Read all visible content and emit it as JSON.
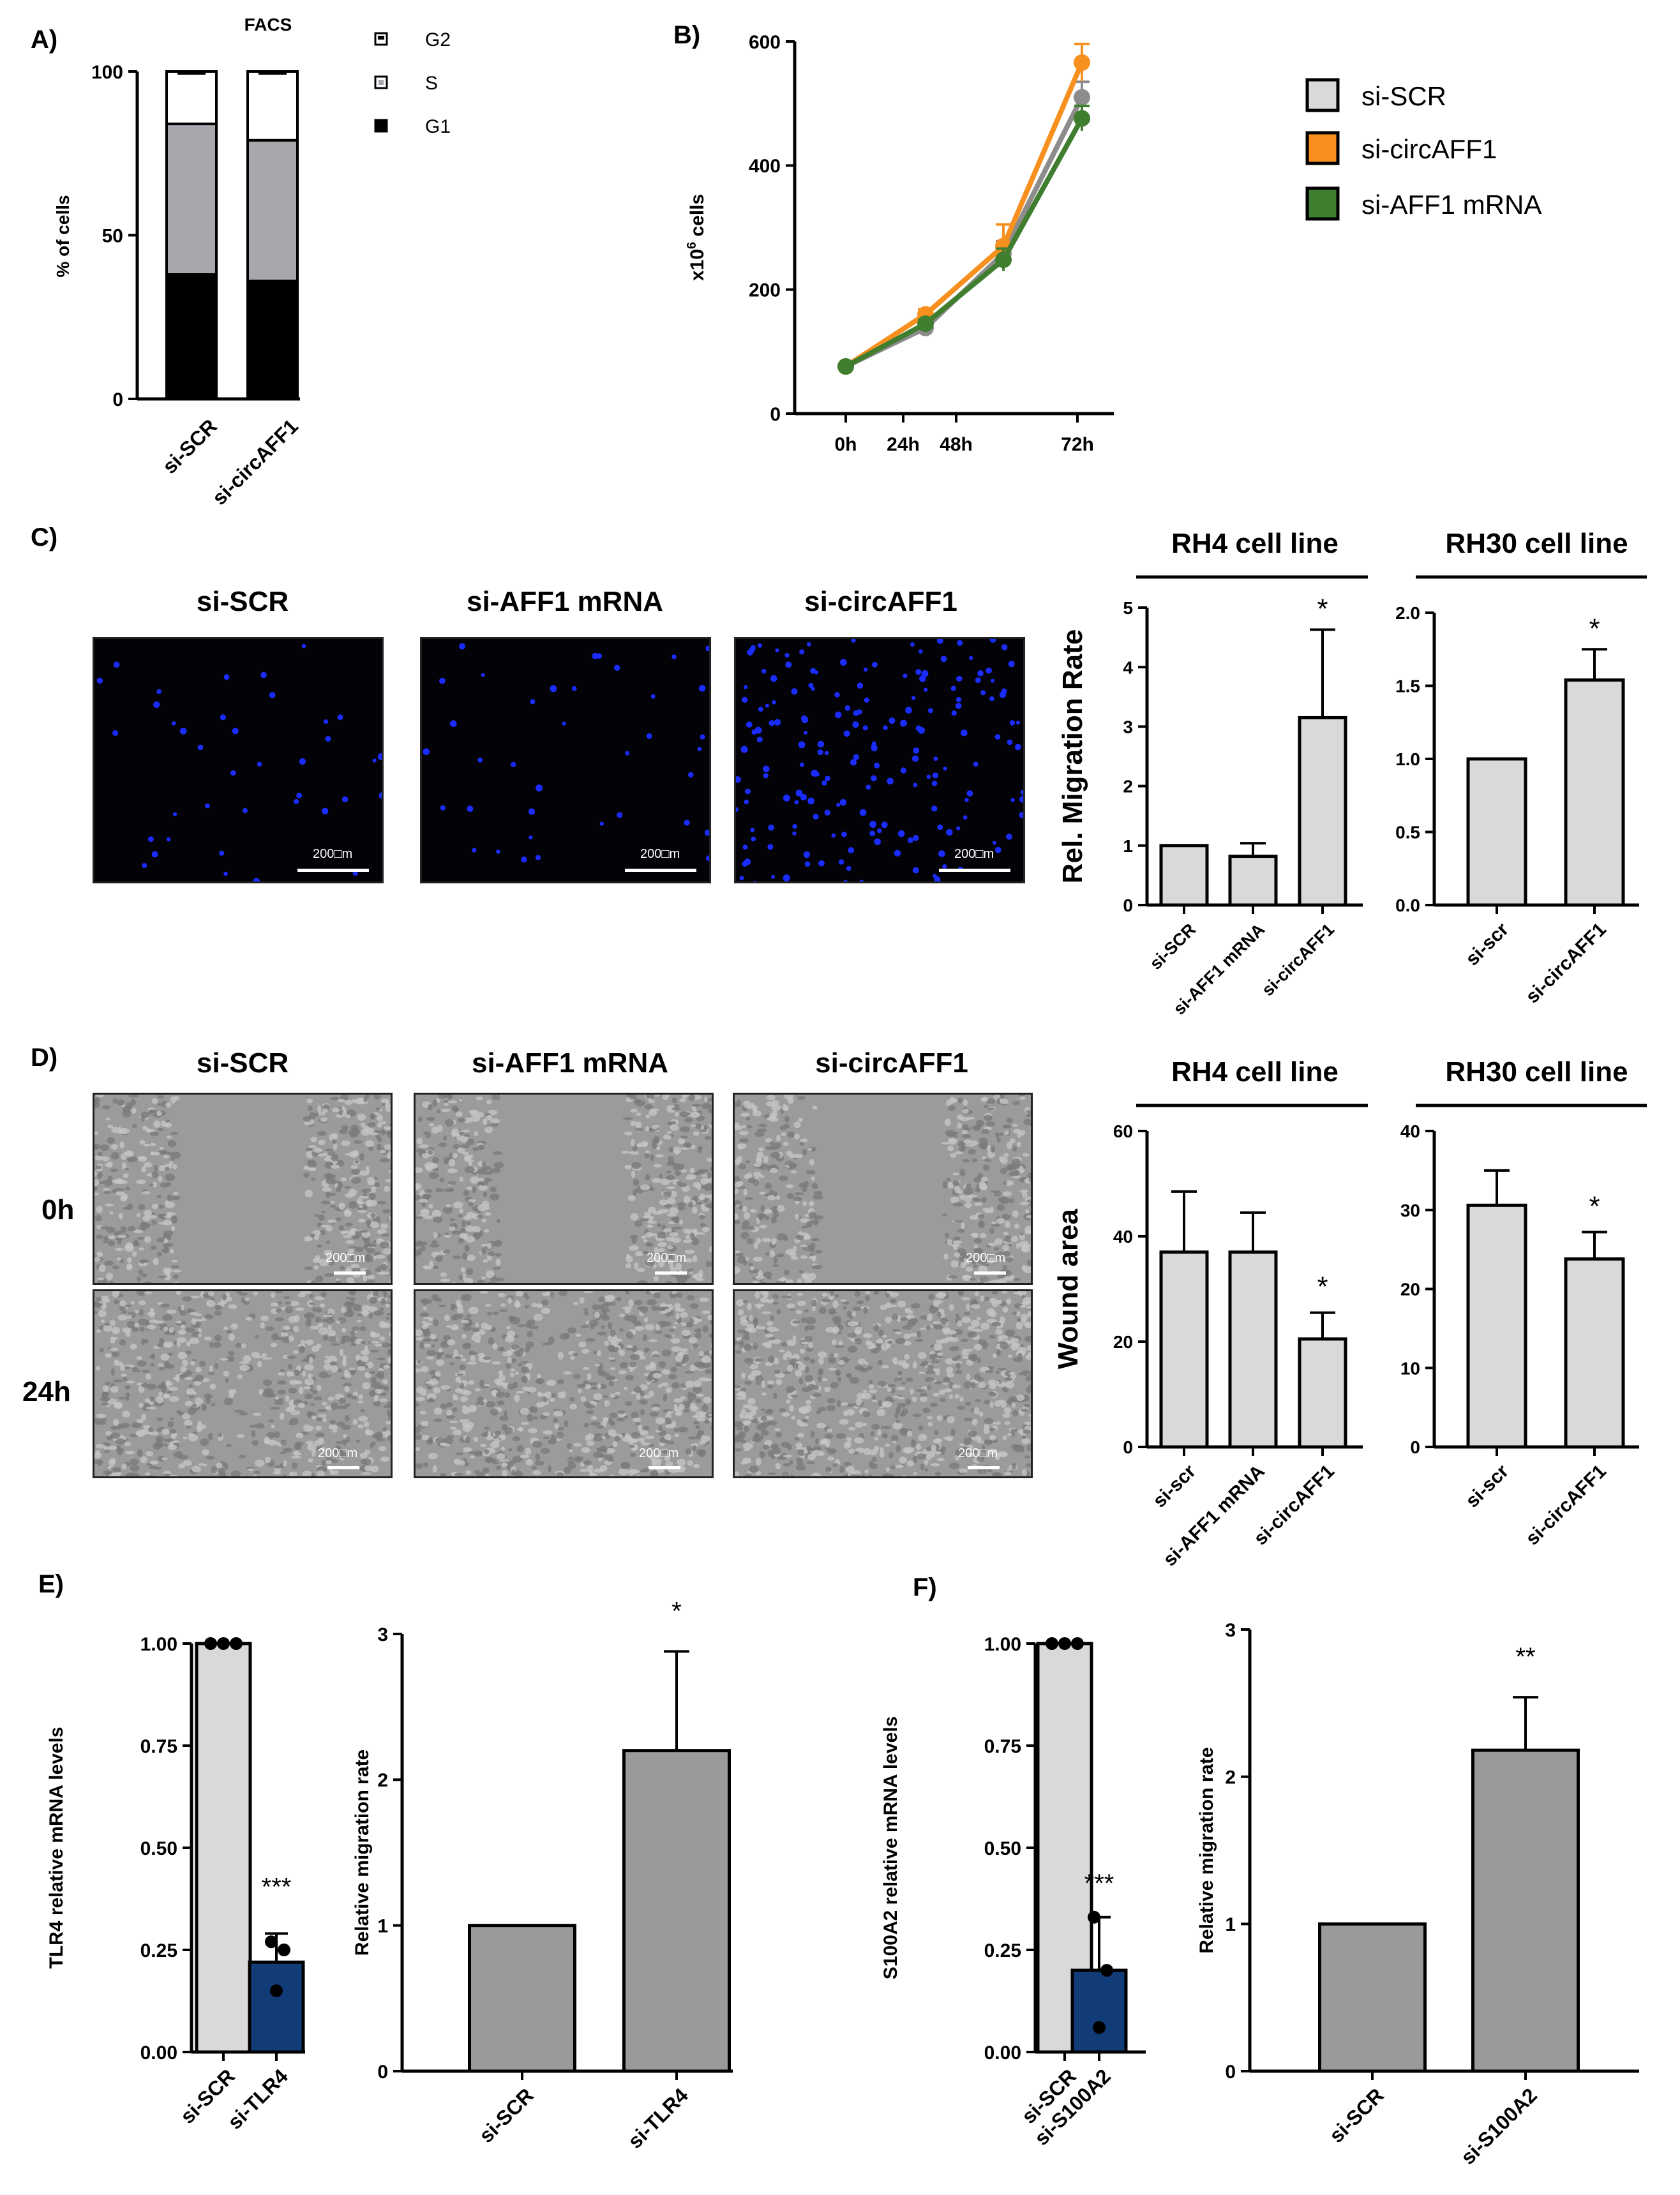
{
  "panels": {
    "A": "A)",
    "B": "B)",
    "C": "C)",
    "D": "D)",
    "E": "E)",
    "F": "F)"
  },
  "colors": {
    "black": "#000000",
    "grey_bar": "#cfcfcf",
    "dark_grey_bar": "#9a9a9a",
    "light_bar": "#d9d9d9",
    "navy": "#123c78",
    "orange": "#f7901e",
    "green": "#3f7d2f",
    "gray_line": "#8c8c8c",
    "fluor_dot": "#1a2cff"
  },
  "micrographs": {
    "c_headers": [
      "si-SCR",
      "si-AFF1 mRNA",
      "si-circAFF1"
    ],
    "d_headers": [
      "si-SCR",
      "si-AFF1 mRNA",
      "si-circAFF1"
    ],
    "d_rows": [
      "0h",
      "24h"
    ],
    "scale_label": "200□m"
  },
  "chart_data": [
    {
      "id": "A",
      "type": "bar",
      "title": "FACS",
      "stacked": true,
      "categories": [
        "si-SCR",
        "si-circAFF1"
      ],
      "series": [
        {
          "name": "G1",
          "values": [
            38,
            36
          ],
          "errors": [
            1.5,
            1.5
          ]
        },
        {
          "name": "S",
          "values": [
            46,
            43
          ],
          "errors": [
            2.5,
            1.0
          ]
        },
        {
          "name": "G2",
          "values": [
            16,
            21
          ],
          "errors": [
            0.8,
            1.0
          ]
        }
      ],
      "legend_order": [
        "G2",
        "S",
        "G1"
      ],
      "ylabel": "% of cells",
      "ylim": [
        0,
        100
      ],
      "yticks": [
        0,
        50,
        100
      ]
    },
    {
      "id": "B",
      "type": "line",
      "x": [
        "0h",
        "24h",
        "48h",
        "72h"
      ],
      "series": [
        {
          "name": "si-SCR",
          "values": [
            76,
            138,
            258,
            510
          ],
          "errors": [
            2,
            5,
            20,
            25
          ]
        },
        {
          "name": "si-circAFF1",
          "values": [
            76,
            160,
            270,
            566
          ],
          "errors": [
            2,
            8,
            35,
            30
          ]
        },
        {
          "name": "si-AFF1 mRNA",
          "values": [
            76,
            145,
            248,
            476
          ],
          "errors": [
            2,
            6,
            18,
            20
          ]
        }
      ],
      "ylabel_parts": [
        "x10",
        "6",
        " cells"
      ],
      "ylim": [
        0,
        600
      ],
      "yticks": [
        0,
        200,
        400,
        600
      ]
    },
    {
      "id": "C_RH4",
      "type": "bar",
      "title": "RH4 cell line",
      "categories": [
        "si-SCR",
        "si-AFF1 mRNA",
        "si-circAFF1"
      ],
      "values": [
        1.0,
        0.82,
        3.15
      ],
      "errors": [
        0,
        0.22,
        1.48
      ],
      "annotations": [
        "",
        "",
        "*"
      ],
      "ylabel": "Rel. Migration Rate",
      "ylim": [
        0,
        5
      ],
      "yticks": [
        0,
        1,
        2,
        3,
        4,
        5
      ]
    },
    {
      "id": "C_RH30",
      "type": "bar",
      "title": "RH30 cell line",
      "categories": [
        "si-scr",
        "si-circAFF1"
      ],
      "values": [
        1.0,
        1.54
      ],
      "errors": [
        0,
        0.21
      ],
      "annotations": [
        "",
        "*"
      ],
      "ylabel": "",
      "ylim": [
        0,
        2
      ],
      "yticks": [
        "0.0",
        "0.5",
        "1.0",
        "1.5",
        "2.0"
      ]
    },
    {
      "id": "D_RH4",
      "type": "bar",
      "title": "RH4 cell line",
      "categories": [
        "si-scr",
        "si-AFF1 mRNA",
        "si-circAFF1"
      ],
      "values": [
        37.0,
        37.0,
        20.5
      ],
      "errors": [
        11.5,
        7.5,
        5.0
      ],
      "annotations": [
        "",
        "",
        "*"
      ],
      "ylabel": "Wound area",
      "ylim": [
        0,
        60
      ],
      "yticks": [
        0,
        20,
        40,
        60
      ]
    },
    {
      "id": "D_RH30",
      "type": "bar",
      "title": "RH30 cell line",
      "categories": [
        "si-scr",
        "si-circAFF1"
      ],
      "values": [
        30.6,
        23.8
      ],
      "errors": [
        4.4,
        3.4
      ],
      "annotations": [
        "",
        "*"
      ],
      "ylabel": "",
      "ylim": [
        0,
        40
      ],
      "yticks": [
        0,
        10,
        20,
        30,
        40
      ]
    },
    {
      "id": "E1",
      "type": "bar",
      "categories": [
        "si-SCR",
        "si-TLR4"
      ],
      "values": [
        1.0,
        0.22
      ],
      "errors": [
        0,
        0.07
      ],
      "points": [
        [
          1.0,
          1.0,
          1.0
        ],
        [
          0.27,
          0.25,
          0.15
        ]
      ],
      "annotations": [
        "",
        "***"
      ],
      "ylabel": "TLR4  relative mRNA levels",
      "ylim": [
        0,
        1.0
      ],
      "yticks": [
        "0.00",
        "0.25",
        "0.50",
        "0.75",
        "1.00"
      ]
    },
    {
      "id": "E2",
      "type": "bar",
      "categories": [
        "si-SCR",
        "si-TLR4"
      ],
      "values": [
        1.0,
        2.2
      ],
      "errors": [
        0,
        0.68
      ],
      "annotations": [
        "",
        "*"
      ],
      "ylabel": "Relative migration rate",
      "ylim": [
        0,
        3
      ],
      "yticks": [
        0,
        1,
        2,
        3
      ]
    },
    {
      "id": "F1",
      "type": "bar",
      "categories": [
        "si-SCR",
        "si-S100A2"
      ],
      "values": [
        1.0,
        0.2
      ],
      "errors": [
        0,
        0.13
      ],
      "points": [
        [
          1.0,
          1.0,
          1.0
        ],
        [
          0.33,
          0.2,
          0.06
        ]
      ],
      "annotations": [
        "",
        "***"
      ],
      "ylabel": "S100A2 relative mRNA levels",
      "ylim": [
        0,
        1.0
      ],
      "yticks": [
        "0.00",
        "0.25",
        "0.50",
        "0.75",
        "1.00"
      ]
    },
    {
      "id": "F2",
      "type": "bar",
      "categories": [
        "si-SCR",
        "si-S100A2"
      ],
      "values": [
        1.0,
        2.18
      ],
      "errors": [
        0,
        0.36
      ],
      "annotations": [
        "",
        "**"
      ],
      "ylabel": "Relative migration rate",
      "ylim": [
        0,
        3
      ],
      "yticks": [
        0,
        1,
        2,
        3
      ]
    }
  ]
}
